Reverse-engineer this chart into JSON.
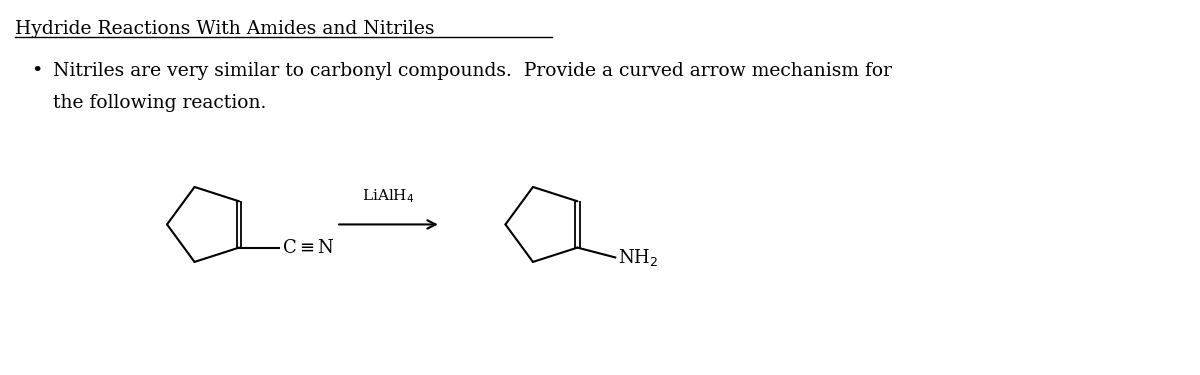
{
  "title": "Hydride Reactions With Amides and Nitriles",
  "bullet_line1": "Nitriles are very similar to carbonyl compounds.  Provide a curved arrow mechanism for",
  "bullet_line2": "the following reaction.",
  "reagent": "LiAlH$_4$",
  "background_color": "#ffffff",
  "text_color": "#000000",
  "title_fontsize": 13.5,
  "body_fontsize": 13.5,
  "chem_fontsize": 12
}
